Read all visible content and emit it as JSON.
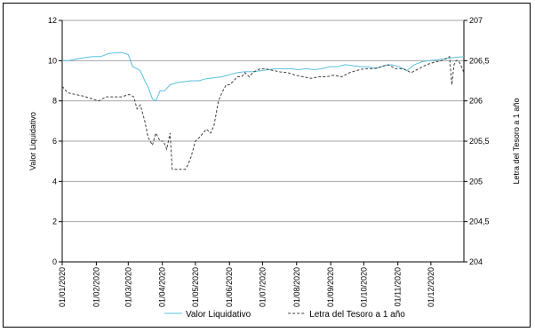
{
  "chart_data": {
    "type": "line",
    "y_left_label": "Valor Liquidativo",
    "y_right_label": "Letra del Tesoro a 1 año",
    "y_left_ticks": [
      "0",
      "2",
      "4",
      "6",
      "8",
      "10",
      "12"
    ],
    "y_left_range": [
      0,
      12
    ],
    "y_right_ticks": [
      "204",
      "204,5",
      "205",
      "205,5",
      "206",
      "206,5",
      "207"
    ],
    "y_right_range": [
      204,
      207
    ],
    "x_ticks": [
      "01/01/2020",
      "01/02/2020",
      "01/03/2020",
      "01/04/2020",
      "01/05/2020",
      "01/06/2020",
      "01/07/2020",
      "01/08/2020",
      "01/09/2020",
      "01/10/2020",
      "01/11/2020",
      "01/12/2020"
    ],
    "x_range": [
      "01/01/2020",
      "31/12/2020"
    ],
    "grid": "horizontal",
    "legend_position": "bottom",
    "colors": {
      "Valor Liquidativo": "#5bc0de",
      "Letra del Tesoro a 1 año": "#404040",
      "grid": "#a6a6a6"
    },
    "series": [
      {
        "name": "Valor Liquidativo",
        "axis": "left",
        "style": "solid",
        "x": [
          "01/01/2020",
          "07/01/2020",
          "15/01/2020",
          "22/01/2020",
          "29/01/2020",
          "05/02/2020",
          "12/02/2020",
          "19/02/2020",
          "25/02/2020",
          "01/03/2020",
          "05/03/2020",
          "09/03/2020",
          "12/03/2020",
          "16/03/2020",
          "19/03/2020",
          "23/03/2020",
          "26/03/2020",
          "30/03/2020",
          "03/04/2020",
          "08/04/2020",
          "14/04/2020",
          "20/04/2020",
          "27/04/2020",
          "04/05/2020",
          "11/05/2020",
          "18/05/2020",
          "25/05/2020",
          "01/06/2020",
          "08/06/2020",
          "15/06/2020",
          "22/06/2020",
          "29/06/2020",
          "06/07/2020",
          "13/07/2020",
          "20/07/2020",
          "27/07/2020",
          "03/08/2020",
          "10/08/2020",
          "17/08/2020",
          "24/08/2020",
          "31/08/2020",
          "07/09/2020",
          "14/09/2020",
          "21/09/2020",
          "28/09/2020",
          "05/10/2020",
          "12/10/2020",
          "19/10/2020",
          "26/10/2020",
          "02/11/2020",
          "09/11/2020",
          "16/11/2020",
          "23/11/2020",
          "30/11/2020",
          "07/12/2020",
          "14/12/2020",
          "21/12/2020",
          "31/12/2020"
        ],
        "values": [
          10.0,
          10.0,
          10.1,
          10.15,
          10.2,
          10.2,
          10.35,
          10.4,
          10.4,
          10.3,
          9.7,
          9.6,
          9.5,
          9.0,
          8.7,
          8.1,
          8.0,
          8.5,
          8.5,
          8.8,
          8.9,
          8.95,
          9.0,
          9.0,
          9.1,
          9.15,
          9.2,
          9.3,
          9.4,
          9.45,
          9.45,
          9.5,
          9.55,
          9.6,
          9.6,
          9.6,
          9.55,
          9.6,
          9.55,
          9.6,
          9.7,
          9.7,
          9.8,
          9.75,
          9.7,
          9.7,
          9.6,
          9.75,
          9.8,
          9.7,
          9.5,
          9.8,
          9.95,
          10.0,
          10.05,
          10.1,
          10.15,
          10.2
        ]
      },
      {
        "name": "Letra del Tesoro a 1 año",
        "axis": "right",
        "style": "dashed",
        "x": [
          "01/01/2020",
          "06/01/2020",
          "13/01/2020",
          "20/01/2020",
          "27/01/2020",
          "03/02/2020",
          "10/02/2020",
          "17/02/2020",
          "24/02/2020",
          "02/03/2020",
          "06/03/2020",
          "09/03/2020",
          "12/03/2020",
          "16/03/2020",
          "19/03/2020",
          "23/03/2020",
          "26/03/2020",
          "30/03/2020",
          "02/04/2020",
          "05/04/2020",
          "08/04/2020",
          "10/04/2020",
          "14/04/2020",
          "18/04/2020",
          "22/04/2020",
          "24/04/2020",
          "27/04/2020",
          "01/05/2020",
          "05/05/2020",
          "08/05/2020",
          "11/05/2020",
          "15/05/2020",
          "18/05/2020",
          "22/05/2020",
          "25/05/2020",
          "29/05/2020",
          "01/06/2020",
          "05/06/2020",
          "08/06/2020",
          "12/06/2020",
          "15/06/2020",
          "19/06/2020",
          "22/06/2020",
          "26/06/2020",
          "29/06/2020",
          "03/07/2020",
          "10/07/2020",
          "17/07/2020",
          "24/07/2020",
          "31/07/2020",
          "07/08/2020",
          "14/08/2020",
          "21/08/2020",
          "28/08/2020",
          "04/09/2020",
          "11/09/2020",
          "18/09/2020",
          "25/09/2020",
          "02/10/2020",
          "09/10/2020",
          "16/10/2020",
          "23/10/2020",
          "30/10/2020",
          "06/11/2020",
          "13/11/2020",
          "20/11/2020",
          "27/11/2020",
          "04/12/2020",
          "11/12/2020",
          "18/12/2020",
          "20/12/2020",
          "22/12/2020",
          "24/12/2020",
          "26/12/2020",
          "28/12/2020",
          "31/12/2020"
        ],
        "values": [
          206.18,
          206.1,
          206.08,
          206.06,
          206.03,
          206.0,
          206.05,
          206.05,
          206.05,
          206.08,
          206.05,
          205.9,
          205.95,
          205.75,
          205.55,
          205.45,
          205.6,
          205.5,
          205.5,
          205.4,
          205.6,
          205.15,
          205.15,
          205.15,
          205.15,
          205.2,
          205.3,
          205.5,
          205.55,
          205.6,
          205.65,
          205.6,
          205.7,
          206.0,
          206.1,
          206.2,
          206.2,
          206.25,
          206.3,
          206.3,
          206.35,
          206.3,
          206.35,
          206.38,
          206.4,
          206.4,
          206.38,
          206.36,
          206.35,
          206.32,
          206.3,
          206.28,
          206.3,
          206.3,
          206.32,
          206.3,
          206.35,
          206.38,
          206.4,
          206.4,
          206.42,
          206.45,
          206.4,
          206.4,
          206.35,
          206.4,
          206.45,
          206.48,
          206.5,
          206.55,
          206.2,
          206.45,
          206.5,
          206.5,
          206.45,
          206.35
        ]
      }
    ]
  }
}
